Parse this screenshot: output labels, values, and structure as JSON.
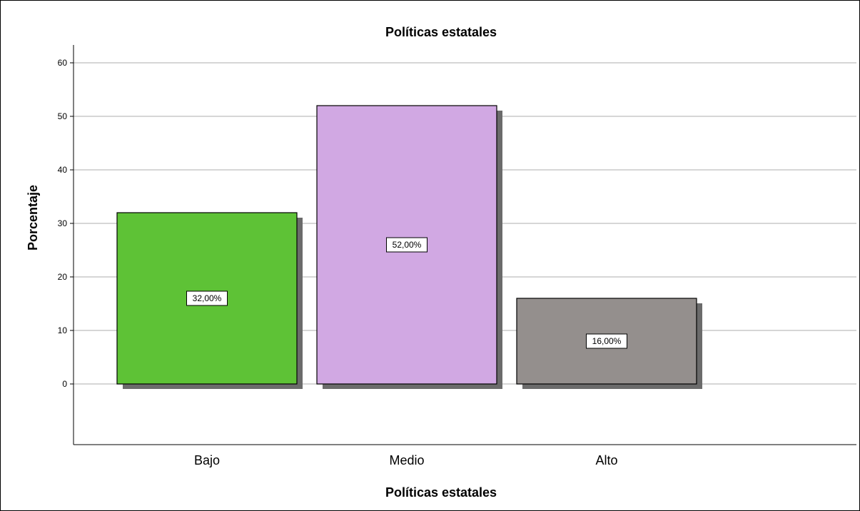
{
  "chart_data": {
    "type": "bar",
    "title": "Políticas estatales",
    "xlabel": "Políticas estatales",
    "ylabel": "Porcentaje",
    "categories": [
      "Bajo",
      "Medio",
      "Alto"
    ],
    "values": [
      32,
      52,
      16
    ],
    "data_labels": [
      "32,00%",
      "52,00%",
      "16,00%"
    ],
    "colors": [
      "#5ec236",
      "#d1a8e3",
      "#948f8d"
    ],
    "yticks": [
      0,
      10,
      20,
      30,
      40,
      50,
      60
    ],
    "ylim": [
      -11,
      63
    ],
    "grid": true,
    "legend": "none"
  }
}
